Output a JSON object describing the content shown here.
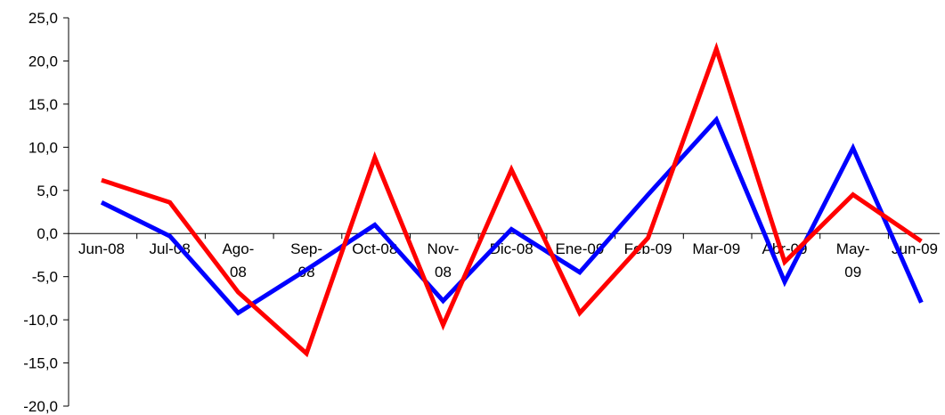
{
  "chart_data": {
    "type": "line",
    "title": "",
    "xlabel": "",
    "ylabel": "",
    "ylim": [
      -20,
      25
    ],
    "yticks": [
      25,
      20,
      15,
      10,
      5,
      0,
      -5,
      -10,
      -15,
      -20
    ],
    "ytick_labels": [
      "25,0",
      "20,0",
      "15,0",
      "10,0",
      "5,0",
      "0,0",
      "-5,0",
      "-10,0",
      "-15,0",
      "-20,0"
    ],
    "grid": false,
    "legend": "none",
    "categories": [
      [
        "Jun-08"
      ],
      [
        "Jul-08"
      ],
      [
        "Ago-",
        "08"
      ],
      [
        "Sep-",
        "08"
      ],
      [
        "Oct-08"
      ],
      [
        "Nov-",
        "08"
      ],
      [
        "Dic-08"
      ],
      [
        "Ene-09"
      ],
      [
        "Feb-09"
      ],
      [
        "Mar-09"
      ],
      [
        "Abr-09"
      ],
      [
        "May-",
        "09"
      ],
      [
        "Jun-09"
      ]
    ],
    "series": [
      {
        "color": "#0000ff",
        "values": [
          3.6,
          -0.3,
          -9.2,
          -4.2,
          1.0,
          -7.8,
          0.5,
          -4.5,
          4.5,
          13.2,
          -5.6,
          9.9,
          -8.0
        ]
      },
      {
        "color": "#ff0000",
        "values": [
          6.2,
          3.6,
          -6.8,
          -13.9,
          8.8,
          -10.6,
          7.4,
          -9.2,
          -0.5,
          21.4,
          -3.3,
          4.5,
          -0.9
        ]
      }
    ]
  }
}
